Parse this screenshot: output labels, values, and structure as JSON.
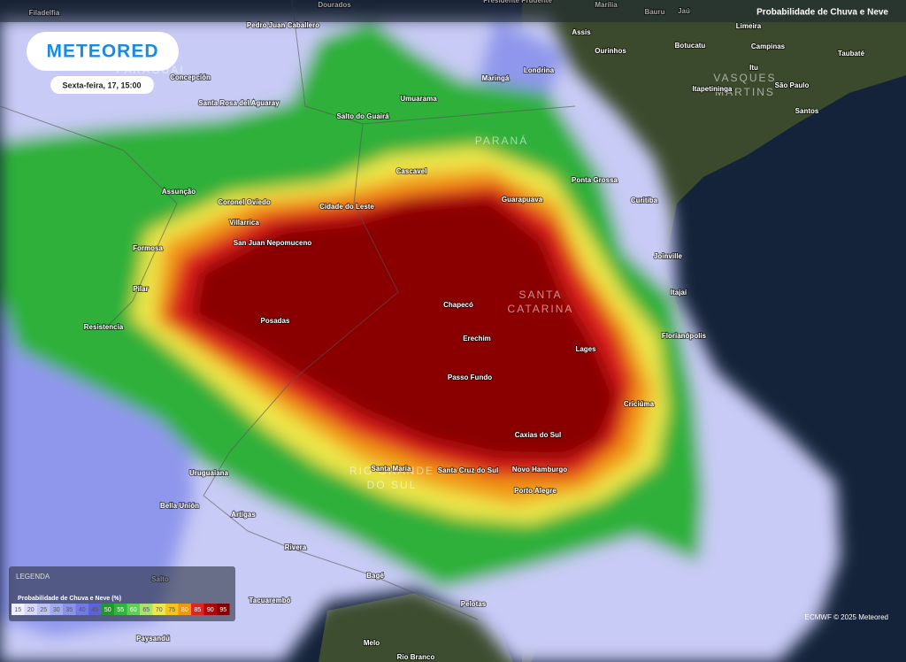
{
  "header": {
    "logo": "METEORED",
    "date": "Sexta-feira, 17, 15:00",
    "layer": "Probabilidade de Chuva e Neve"
  },
  "labels": [
    "Filadelfia",
    "Dourados",
    "Presidente Prudente",
    "Marília",
    "Bauru",
    "Jaú",
    "Pedro Juan Caballero",
    "Assis",
    "Ourinhos",
    "Botucatu",
    "Limeira",
    "Campinas",
    "Taubaté",
    "Itu",
    "Itapetininga",
    "São Paulo",
    "Santos",
    "Concepción",
    "Santa Rosa del Aguaray",
    "Salto do Guairá",
    "Umuarama",
    "Maringá",
    "Londrina",
    "Cascavel",
    "Ponta Grossa",
    "Curitiba",
    "Guarapuava",
    "Assunção",
    "Coronel Oviedo",
    "Cidade do Leste",
    "Villarrica",
    "San Juan Nepomuceno",
    "Formosa",
    "Pilar",
    "Joinville",
    "Itajaí",
    "Chapecó",
    "Resistencia",
    "Posadas",
    "Florianópolis",
    "Erechim",
    "Lages",
    "Passo Fundo",
    "Criciúma",
    "Caxias do Sul",
    "Santa Maria",
    "Santa Cruz do Sul",
    "Novo Hamburgo",
    "Uruguaiana",
    "Porto Alegre",
    "Bella Unión",
    "Artigas",
    "Rivera",
    "Salto",
    "Bagé",
    "Tacuarembó",
    "Pelotas",
    "Paysandú",
    "Melo",
    "Rio Branco"
  ],
  "regions": [
    {
      "lines": [
        "PARAGUAI"
      ]
    },
    {
      "lines": [
        "VASQUES",
        "MARTINS"
      ]
    },
    {
      "lines": [
        "PARANÁ"
      ]
    },
    {
      "lines": [
        "SANTA",
        "CATARINA"
      ]
    },
    {
      "lines": [
        "RIO GRANDE",
        "DO SUL"
      ]
    }
  ],
  "legend": {
    "title": "LEGENDA",
    "subtitle": "Probabilidade de Chuva e Neve (%)",
    "items": [
      {
        "value": 15,
        "color": "#eef0ff"
      },
      {
        "value": 20,
        "color": "#d6d9fa"
      },
      {
        "value": 25,
        "color": "#bcc2f5"
      },
      {
        "value": 30,
        "color": "#a2aaf0"
      },
      {
        "value": 35,
        "color": "#8a92ea"
      },
      {
        "value": 40,
        "color": "#737be2"
      },
      {
        "value": 45,
        "color": "#5c63d8"
      },
      {
        "value": 50,
        "color": "#1f9a2a"
      },
      {
        "value": 55,
        "color": "#33b43a"
      },
      {
        "value": 60,
        "color": "#5fcf55"
      },
      {
        "value": 65,
        "color": "#a9e36a"
      },
      {
        "value": 70,
        "color": "#ebe84a"
      },
      {
        "value": 75,
        "color": "#f6c41b"
      },
      {
        "value": 80,
        "color": "#f2960f"
      },
      {
        "value": 85,
        "color": "#e0241e"
      },
      {
        "value": 90,
        "color": "#b30505"
      },
      {
        "value": 95,
        "color": "#820000"
      }
    ]
  },
  "credit": "ECMWF © 2025 Meteored"
}
